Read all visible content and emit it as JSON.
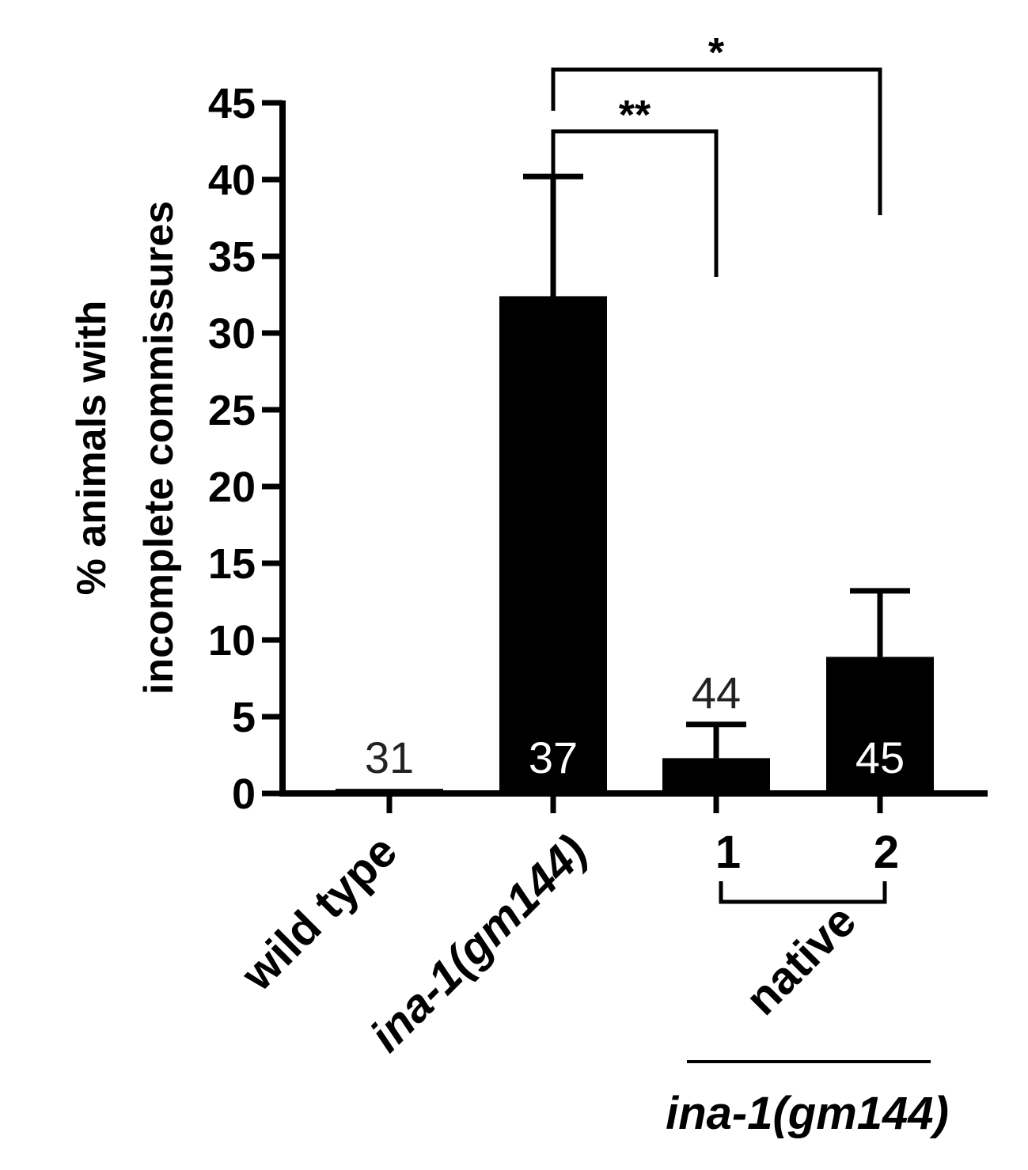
{
  "chart_data": {
    "type": "bar",
    "ylabel": "% animals with incomplete commissures",
    "ylim": [
      0,
      45
    ],
    "yticks": [
      0,
      5,
      10,
      15,
      20,
      25,
      30,
      35,
      40,
      45
    ],
    "categories": [
      "wild type",
      "ina-1(gm144)",
      "1",
      "2"
    ],
    "values": [
      0.3,
      32.4,
      2.3,
      8.9
    ],
    "errors": [
      0,
      7.8,
      2.2,
      4.3
    ],
    "n_labels": [
      "31",
      "37",
      "44",
      "45"
    ],
    "group_bracket": {
      "label": "native",
      "members": [
        "1",
        "2"
      ],
      "underline_label": "ina-1(gm144)"
    },
    "significance": [
      {
        "from": "ina-1(gm144)",
        "to": "1",
        "label": "**"
      },
      {
        "from": "ina-1(gm144)",
        "to": "2",
        "label": "*"
      }
    ],
    "bar_color": "#000000",
    "grid": false,
    "legend": "none"
  }
}
